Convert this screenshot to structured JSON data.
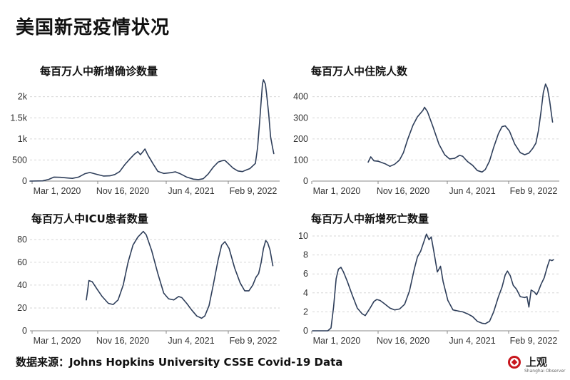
{
  "title": "美国新冠疫情状况",
  "source": "数据来源：Johns Hopkins University CSSE Covid-19 Data",
  "logo": {
    "name": "上观",
    "sub": "Shanghai Observer",
    "color": "#c8161d"
  },
  "line_color": "#2e3e5a",
  "grid_color": "#d6d6d6",
  "chart_data": [
    {
      "type": "line",
      "title": "每百万人中新增确诊数量",
      "x_ticks": [
        "Mar 1, 2020",
        "Nov 16, 2020",
        "Jun 4, 2021",
        "Feb 9, 2022"
      ],
      "xlim": [
        "2020-01-22",
        "2022-03-03"
      ],
      "y_ticks": [
        "0",
        "500",
        "1k",
        "1.5k",
        "2k"
      ],
      "y_tick_values": [
        0,
        500,
        1000,
        1500,
        2000
      ],
      "ylim": [
        0,
        2400
      ],
      "grid": true,
      "series": [
        {
          "points": [
            [
              "2020-01-22",
              0
            ],
            [
              "2020-03-01",
              5
            ],
            [
              "2020-03-20",
              40
            ],
            [
              "2020-04-05",
              95
            ],
            [
              "2020-04-25",
              90
            ],
            [
              "2020-05-15",
              75
            ],
            [
              "2020-06-01",
              65
            ],
            [
              "2020-06-20",
              95
            ],
            [
              "2020-07-10",
              175
            ],
            [
              "2020-07-25",
              205
            ],
            [
              "2020-08-15",
              160
            ],
            [
              "2020-09-05",
              120
            ],
            [
              "2020-09-25",
              125
            ],
            [
              "2020-10-10",
              155
            ],
            [
              "2020-10-25",
              225
            ],
            [
              "2020-11-10",
              390
            ],
            [
              "2020-11-25",
              520
            ],
            [
              "2020-12-10",
              640
            ],
            [
              "2020-12-20",
              700
            ],
            [
              "2020-12-28",
              625
            ],
            [
              "2021-01-05",
              700
            ],
            [
              "2021-01-11",
              760
            ],
            [
              "2021-01-20",
              620
            ],
            [
              "2021-02-05",
              410
            ],
            [
              "2021-02-20",
              230
            ],
            [
              "2021-03-10",
              180
            ],
            [
              "2021-04-01",
              200
            ],
            [
              "2021-04-15",
              220
            ],
            [
              "2021-05-01",
              170
            ],
            [
              "2021-05-20",
              95
            ],
            [
              "2021-06-10",
              45
            ],
            [
              "2021-06-25",
              35
            ],
            [
              "2021-07-10",
              55
            ],
            [
              "2021-07-25",
              165
            ],
            [
              "2021-08-10",
              330
            ],
            [
              "2021-08-25",
              450
            ],
            [
              "2021-09-05",
              480
            ],
            [
              "2021-09-15",
              490
            ],
            [
              "2021-09-25",
              420
            ],
            [
              "2021-10-10",
              310
            ],
            [
              "2021-10-25",
              240
            ],
            [
              "2021-11-08",
              225
            ],
            [
              "2021-11-22",
              270
            ],
            [
              "2021-12-01",
              295
            ],
            [
              "2021-12-10",
              360
            ],
            [
              "2021-12-18",
              420
            ],
            [
              "2021-12-25",
              800
            ],
            [
              "2021-12-31",
              1400
            ],
            [
              "2022-01-05",
              1900
            ],
            [
              "2022-01-09",
              2300
            ],
            [
              "2022-01-12",
              2400
            ],
            [
              "2022-01-15",
              2350
            ],
            [
              "2022-01-18",
              2300
            ],
            [
              "2022-01-22",
              2050
            ],
            [
              "2022-01-28",
              1600
            ],
            [
              "2022-02-03",
              1050
            ],
            [
              "2022-02-09",
              800
            ],
            [
              "2022-02-13",
              650
            ]
          ]
        }
      ]
    },
    {
      "type": "line",
      "title": "每百万人中住院人数",
      "x_ticks": [
        "Mar 1, 2020",
        "Nov 16, 2020",
        "Jun 4, 2021",
        "Feb 9, 2022"
      ],
      "xlim": [
        "2020-01-22",
        "2022-03-03"
      ],
      "y_ticks": [
        "0",
        "100",
        "200",
        "300",
        "400"
      ],
      "y_tick_values": [
        0,
        100,
        200,
        300,
        400
      ],
      "ylim": [
        0,
        480
      ],
      "grid": true,
      "series": [
        {
          "points": [
            [
              "2020-07-14",
              90
            ],
            [
              "2020-07-22",
              115
            ],
            [
              "2020-08-01",
              96
            ],
            [
              "2020-08-15",
              94
            ],
            [
              "2020-09-05",
              82
            ],
            [
              "2020-09-20",
              70
            ],
            [
              "2020-10-05",
              80
            ],
            [
              "2020-10-20",
              100
            ],
            [
              "2020-11-01",
              135
            ],
            [
              "2020-11-15",
              200
            ],
            [
              "2020-12-01",
              265
            ],
            [
              "2020-12-15",
              305
            ],
            [
              "2021-01-01",
              335
            ],
            [
              "2021-01-06",
              350
            ],
            [
              "2021-01-15",
              330
            ],
            [
              "2021-02-01",
              260
            ],
            [
              "2021-02-20",
              175
            ],
            [
              "2021-03-10",
              125
            ],
            [
              "2021-03-25",
              105
            ],
            [
              "2021-04-10",
              108
            ],
            [
              "2021-04-25",
              122
            ],
            [
              "2021-05-05",
              118
            ],
            [
              "2021-05-20",
              93
            ],
            [
              "2021-06-05",
              75
            ],
            [
              "2021-06-20",
              50
            ],
            [
              "2021-07-05",
              43
            ],
            [
              "2021-07-15",
              55
            ],
            [
              "2021-07-28",
              95
            ],
            [
              "2021-08-10",
              160
            ],
            [
              "2021-08-25",
              225
            ],
            [
              "2021-09-05",
              258
            ],
            [
              "2021-09-15",
              262
            ],
            [
              "2021-09-28",
              238
            ],
            [
              "2021-10-15",
              175
            ],
            [
              "2021-11-01",
              135
            ],
            [
              "2021-11-15",
              125
            ],
            [
              "2021-11-28",
              133
            ],
            [
              "2021-12-10",
              155
            ],
            [
              "2021-12-20",
              180
            ],
            [
              "2021-12-28",
              240
            ],
            [
              "2022-01-05",
              330
            ],
            [
              "2022-01-12",
              420
            ],
            [
              "2022-01-19",
              460
            ],
            [
              "2022-01-25",
              440
            ],
            [
              "2022-02-01",
              380
            ],
            [
              "2022-02-08",
              300
            ],
            [
              "2022-02-10",
              280
            ]
          ]
        }
      ]
    },
    {
      "type": "line",
      "title": "每百万人中ICU患者数量",
      "x_ticks": [
        "Mar 1, 2020",
        "Nov 16, 2020",
        "Jun 4, 2021",
        "Feb 9, 2022"
      ],
      "xlim": [
        "2020-01-22",
        "2022-03-03"
      ],
      "y_ticks": [
        "0",
        "20",
        "40",
        "60",
        "80"
      ],
      "y_tick_values": [
        0,
        20,
        40,
        60,
        80
      ],
      "ylim": [
        0,
        88
      ],
      "grid": true,
      "series": [
        {
          "points": [
            [
              "2020-07-14",
              27
            ],
            [
              "2020-07-18",
              35
            ],
            [
              "2020-07-22",
              44
            ],
            [
              "2020-08-01",
              43
            ],
            [
              "2020-08-15",
              37
            ],
            [
              "2020-09-01",
              30
            ],
            [
              "2020-09-20",
              24
            ],
            [
              "2020-10-05",
              23
            ],
            [
              "2020-10-20",
              27
            ],
            [
              "2020-11-05",
              40
            ],
            [
              "2020-11-20",
              60
            ],
            [
              "2020-12-05",
              75
            ],
            [
              "2020-12-20",
              82
            ],
            [
              "2021-01-06",
              87
            ],
            [
              "2021-01-15",
              84
            ],
            [
              "2021-02-01",
              70
            ],
            [
              "2021-02-20",
              50
            ],
            [
              "2021-03-10",
              33
            ],
            [
              "2021-03-25",
              28
            ],
            [
              "2021-04-10",
              27
            ],
            [
              "2021-04-25",
              30
            ],
            [
              "2021-05-05",
              29
            ],
            [
              "2021-05-20",
              24
            ],
            [
              "2021-06-05",
              18
            ],
            [
              "2021-06-20",
              13
            ],
            [
              "2021-07-05",
              11
            ],
            [
              "2021-07-15",
              13
            ],
            [
              "2021-07-28",
              22
            ],
            [
              "2021-08-10",
              40
            ],
            [
              "2021-08-25",
              62
            ],
            [
              "2021-09-05",
              75
            ],
            [
              "2021-09-15",
              78
            ],
            [
              "2021-09-28",
              72
            ],
            [
              "2021-10-15",
              55
            ],
            [
              "2021-11-01",
              42
            ],
            [
              "2021-11-15",
              35
            ],
            [
              "2021-11-28",
              35
            ],
            [
              "2021-12-10",
              40
            ],
            [
              "2021-12-20",
              47
            ],
            [
              "2021-12-28",
              50
            ],
            [
              "2022-01-05",
              60
            ],
            [
              "2022-01-12",
              72
            ],
            [
              "2022-01-19",
              79
            ],
            [
              "2022-01-25",
              77
            ],
            [
              "2022-02-01",
              71
            ],
            [
              "2022-02-08",
              60
            ],
            [
              "2022-02-10",
              57
            ]
          ]
        }
      ]
    },
    {
      "type": "line",
      "title": "每百万人中新增死亡数量",
      "x_ticks": [
        "Mar 1, 2020",
        "Nov 16, 2020",
        "Jun 4, 2021",
        "Feb 9, 2022"
      ],
      "xlim": [
        "2020-01-22",
        "2022-03-03"
      ],
      "y_ticks": [
        "0",
        "2",
        "4",
        "6",
        "8",
        "10"
      ],
      "y_tick_values": [
        0,
        2,
        4,
        6,
        8,
        10
      ],
      "ylim": [
        0,
        10.6
      ],
      "grid": true,
      "series": [
        {
          "points": [
            [
              "2020-01-22",
              0
            ],
            [
              "2020-03-10",
              0
            ],
            [
              "2020-03-20",
              0.3
            ],
            [
              "2020-03-28",
              2.5
            ],
            [
              "2020-04-05",
              5.5
            ],
            [
              "2020-04-12",
              6.5
            ],
            [
              "2020-04-20",
              6.7
            ],
            [
              "2020-04-28",
              6.2
            ],
            [
              "2020-05-10",
              5.2
            ],
            [
              "2020-05-25",
              3.8
            ],
            [
              "2020-06-10",
              2.4
            ],
            [
              "2020-06-25",
              1.8
            ],
            [
              "2020-07-05",
              1.6
            ],
            [
              "2020-07-20",
              2.4
            ],
            [
              "2020-08-01",
              3.1
            ],
            [
              "2020-08-10",
              3.3
            ],
            [
              "2020-08-20",
              3.2
            ],
            [
              "2020-09-01",
              2.9
            ],
            [
              "2020-09-20",
              2.4
            ],
            [
              "2020-10-05",
              2.2
            ],
            [
              "2020-10-20",
              2.3
            ],
            [
              "2020-11-05",
              2.8
            ],
            [
              "2020-11-20",
              4.2
            ],
            [
              "2020-12-05",
              6.5
            ],
            [
              "2020-12-15",
              7.8
            ],
            [
              "2020-12-25",
              8.4
            ],
            [
              "2021-01-08",
              9.8
            ],
            [
              "2021-01-12",
              10.2
            ],
            [
              "2021-01-20",
              9.6
            ],
            [
              "2021-01-27",
              9.9
            ],
            [
              "2021-02-05",
              8.2
            ],
            [
              "2021-02-15",
              6.2
            ],
            [
              "2021-02-25",
              6.8
            ],
            [
              "2021-03-05",
              5.2
            ],
            [
              "2021-03-20",
              3.2
            ],
            [
              "2021-04-05",
              2.2
            ],
            [
              "2021-04-20",
              2.1
            ],
            [
              "2021-05-05",
              2.0
            ],
            [
              "2021-05-20",
              1.8
            ],
            [
              "2021-06-05",
              1.5
            ],
            [
              "2021-06-20",
              1.0
            ],
            [
              "2021-07-05",
              0.8
            ],
            [
              "2021-07-15",
              0.75
            ],
            [
              "2021-07-28",
              1.0
            ],
            [
              "2021-08-10",
              2.0
            ],
            [
              "2021-08-25",
              3.6
            ],
            [
              "2021-09-05",
              4.6
            ],
            [
              "2021-09-15",
              5.9
            ],
            [
              "2021-09-22",
              6.3
            ],
            [
              "2021-10-01",
              5.8
            ],
            [
              "2021-10-10",
              4.8
            ],
            [
              "2021-10-20",
              4.4
            ],
            [
              "2021-11-01",
              3.6
            ],
            [
              "2021-11-15",
              3.5
            ],
            [
              "2021-11-22",
              3.6
            ],
            [
              "2021-11-28",
              2.5
            ],
            [
              "2021-12-05",
              4.3
            ],
            [
              "2021-12-15",
              4.1
            ],
            [
              "2021-12-22",
              3.8
            ],
            [
              "2021-12-28",
              4.2
            ],
            [
              "2022-01-05",
              4.9
            ],
            [
              "2022-01-15",
              5.6
            ],
            [
              "2022-01-25",
              6.8
            ],
            [
              "2022-02-01",
              7.5
            ],
            [
              "2022-02-08",
              7.4
            ],
            [
              "2022-02-13",
              7.5
            ]
          ]
        }
      ]
    }
  ]
}
